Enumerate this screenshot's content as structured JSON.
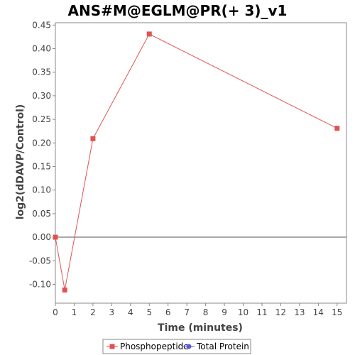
{
  "chart_data": {
    "type": "line",
    "title": "ANS#M@EGLM@PR(+ 3)_v1",
    "xlabel": "Time (minutes)",
    "ylabel": "log2(dDAVP/Control)",
    "xlim": [
      0,
      15.5
    ],
    "ylim": [
      -0.14,
      0.455
    ],
    "x_ticks": [
      "0",
      "1",
      "2",
      "3",
      "4",
      "5",
      "6",
      "7",
      "8",
      "9",
      "10",
      "11",
      "12",
      "13",
      "14",
      "15"
    ],
    "y_ticks": [
      "-0.10",
      "-0.05",
      "0.00",
      "0.05",
      "0.10",
      "0.15",
      "0.20",
      "0.25",
      "0.30",
      "0.35",
      "0.40",
      "0.45"
    ],
    "grid": false,
    "legend_position": "bottom",
    "series": [
      {
        "name": "Phosphopeptide",
        "color": "#e05252",
        "marker": "square",
        "points": [
          {
            "x": 0,
            "y": 0.0
          },
          {
            "x": 0.5,
            "y": -0.112
          },
          {
            "x": 2,
            "y": 0.209
          },
          {
            "x": 5,
            "y": 0.431
          },
          {
            "x": 15,
            "y": 0.231
          }
        ]
      },
      {
        "name": "Total Protein",
        "color": "#5a5ae8",
        "marker": "circle",
        "points": []
      }
    ]
  }
}
